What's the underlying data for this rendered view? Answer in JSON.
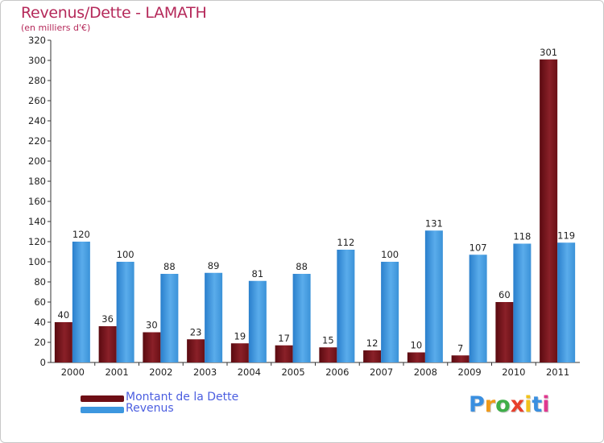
{
  "title": "Revenus/Dette - LAMATH",
  "subtitle": "(en milliers d'€)",
  "logo": {
    "letters": [
      "P",
      "r",
      "o",
      "x",
      "i",
      "t",
      "i"
    ],
    "colors": [
      "#3a8fe0",
      "#f09a1a",
      "#3fae49",
      "#e8402c",
      "#f2c21b",
      "#3a8fe0",
      "#e0388f"
    ]
  },
  "colors": {
    "dette": "#7a1017",
    "revenus": "#3d97df"
  },
  "chart_data": {
    "type": "bar",
    "title": "Revenus/Dette - LAMATH",
    "subtitle": "(en milliers d'€)",
    "categories": [
      "2000",
      "2001",
      "2002",
      "2003",
      "2004",
      "2005",
      "2006",
      "2007",
      "2008",
      "2009",
      "2010",
      "2011"
    ],
    "series": [
      {
        "name": "Montant de la Dette",
        "values": [
          40,
          36,
          30,
          23,
          19,
          17,
          15,
          12,
          10,
          7,
          60,
          301
        ]
      },
      {
        "name": "Revenus",
        "values": [
          120,
          100,
          88,
          89,
          81,
          88,
          112,
          100,
          131,
          107,
          118,
          119
        ]
      }
    ],
    "yticks": [
      0,
      20,
      40,
      60,
      80,
      100,
      120,
      140,
      160,
      180,
      200,
      220,
      240,
      260,
      280,
      300,
      320
    ],
    "ylim": [
      0,
      320
    ],
    "grid": false,
    "legend": "bottom-left"
  }
}
